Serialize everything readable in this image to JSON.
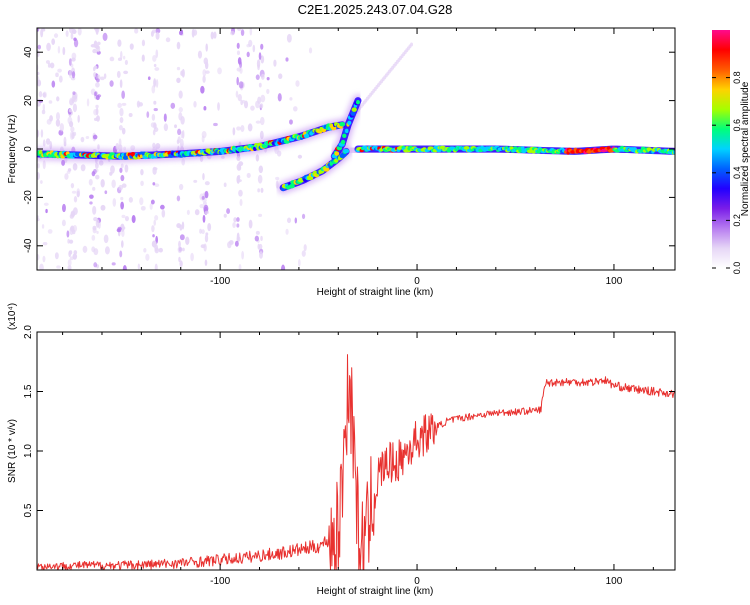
{
  "title": "C2E1.2025.243.07.04.G28",
  "colors": {
    "snr_line": "#e8312f",
    "axis": "#000000",
    "colormap": [
      "#ffffff",
      "#e6d6f6",
      "#b77cf0",
      "#7a1de8",
      "#2200ff",
      "#0060ff",
      "#00d2ff",
      "#00ff7a",
      "#a6ff00",
      "#ffd200",
      "#ff5a00",
      "#ff0000",
      "#ff0a8c"
    ]
  },
  "chart_data": [
    {
      "type": "heatmap",
      "title": "C2E1.2025.243.07.04.G28",
      "xlabel": "Height of straight line (km)",
      "ylabel": "Frequency (Hz)",
      "xlim": [
        -193,
        131
      ],
      "ylim": [
        -50,
        50
      ],
      "x_ticks": [
        -100,
        0,
        100
      ],
      "y_ticks": [
        -40,
        -20,
        0,
        20,
        40
      ],
      "colorbar": {
        "label": "Normalized spectral amplitude",
        "range": [
          0.0,
          1.0
        ],
        "ticks": [
          "0.0",
          "0.2",
          "0.4",
          "0.6",
          "0.8"
        ]
      },
      "ridges": [
        {
          "x": [
            -193,
            -150,
            -120,
            -100,
            -80,
            -60,
            -45,
            -38
          ],
          "y": [
            -2,
            -3,
            -2,
            -1,
            1,
            5,
            9,
            10
          ]
        },
        {
          "x": [
            -68,
            -58,
            -48,
            -40,
            -36
          ],
          "y": [
            -16,
            -13,
            -9,
            -4,
            -1
          ]
        },
        {
          "x": [
            -42,
            -38,
            -35,
            -32,
            -30
          ],
          "y": [
            -3,
            2,
            10,
            16,
            20
          ]
        },
        {
          "x": [
            -30,
            0,
            40,
            80,
            100,
            131
          ],
          "y": [
            0,
            0,
            0,
            -1,
            0,
            -1
          ]
        }
      ]
    },
    {
      "type": "line",
      "xlabel": "Height of straight line (km)",
      "ylabel": "SNR (10 * v/v)",
      "y_scale_label": "(x10⁴)",
      "xlim": [
        -193,
        131
      ],
      "ylim": [
        0,
        2.0
      ],
      "x_ticks": [
        -100,
        0,
        100
      ],
      "y_ticks": [
        "0.5",
        "1.0",
        "1.5",
        "2.0"
      ],
      "x": [
        -193,
        -170,
        -150,
        -130,
        -110,
        -90,
        -80,
        -70,
        -60,
        -50,
        -45,
        -40,
        -37,
        -35,
        -33,
        -31,
        -30,
        -28,
        -25,
        -22,
        -20,
        -15,
        -10,
        -5,
        0,
        5,
        10,
        15,
        20,
        30,
        40,
        50,
        60,
        63,
        65,
        70,
        80,
        90,
        95,
        100,
        110,
        120,
        131
      ],
      "y": [
        0.03,
        0.04,
        0.04,
        0.05,
        0.07,
        0.1,
        0.12,
        0.14,
        0.17,
        0.2,
        0.25,
        0.3,
        1.0,
        1.6,
        1.3,
        0.8,
        0.3,
        0.2,
        0.3,
        0.7,
        0.8,
        0.9,
        0.9,
        1.0,
        1.1,
        1.15,
        1.2,
        1.25,
        1.27,
        1.3,
        1.32,
        1.33,
        1.34,
        1.35,
        1.57,
        1.58,
        1.58,
        1.58,
        1.6,
        1.55,
        1.52,
        1.5,
        1.48
      ]
    }
  ]
}
